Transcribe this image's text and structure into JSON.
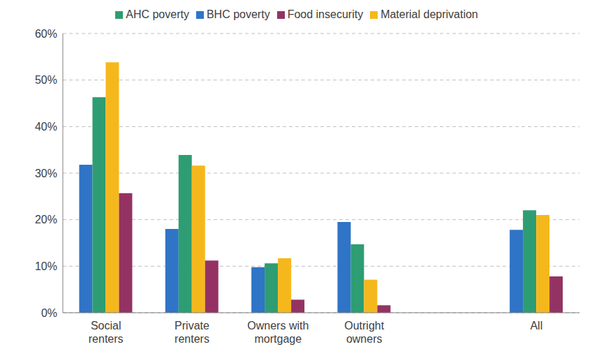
{
  "chart_data": {
    "type": "bar",
    "categories": [
      "Social renters",
      "Private renters",
      "Owners with mortgage",
      "Outright owners",
      null,
      "All"
    ],
    "series": [
      {
        "name": "BHC poverty",
        "color": "#2f74c6",
        "values": [
          31.8,
          18.0,
          9.8,
          19.5,
          null,
          17.8
        ]
      },
      {
        "name": "AHC poverty",
        "color": "#2e9d73",
        "values": [
          46.3,
          33.9,
          10.6,
          14.7,
          null,
          22.0
        ]
      },
      {
        "name": "Material deprivation",
        "color": "#f5b81c",
        "values": [
          53.8,
          31.6,
          11.7,
          7.1,
          null,
          21.0
        ]
      },
      {
        "name": "Food insecurity",
        "color": "#943363",
        "values": [
          25.7,
          11.2,
          2.8,
          1.6,
          null,
          7.8
        ]
      }
    ],
    "ylim": [
      0,
      60
    ],
    "yticks": [
      {
        "value": 0,
        "label": "0%"
      },
      {
        "value": 10,
        "label": "10%"
      },
      {
        "value": 20,
        "label": "20%"
      },
      {
        "value": 30,
        "label": "30%"
      },
      {
        "value": 40,
        "label": "40%"
      },
      {
        "value": 50,
        "label": "50%"
      },
      {
        "value": 60,
        "label": "60%"
      }
    ],
    "grid": true,
    "legend": "top"
  }
}
